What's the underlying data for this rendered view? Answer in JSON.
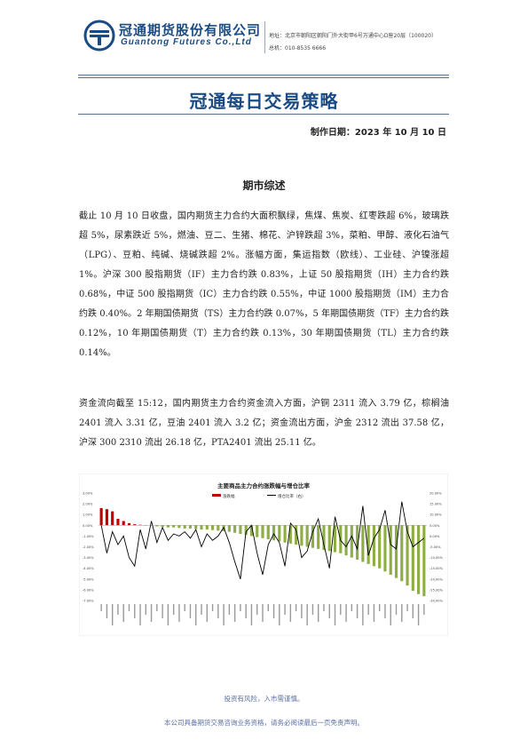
{
  "header": {
    "company_cn": "冠通期货股份有限公司",
    "company_en": "Guantong Futures Co.,Ltd",
    "address": "地址：北京市朝阳区朝阳门外大街甲6号万通中心D座20层（100020）",
    "phone": "总机：010-8535 6666",
    "logo_icon": "guantong-logo-icon",
    "brand_color": "#1b4b84"
  },
  "report": {
    "title": "冠通每日交易策略",
    "date": "制作日期：2023 年 10 月 10 日",
    "section_title": "期市综述",
    "paragraph1": "截止 10 月 10 日收盘，国内期货主力合约大面积飘绿，焦煤、焦炭、红枣跌超 6%，玻璃跌超 5%，尿素跌近 5%，燃油、豆二、生猪、棉花、沪锌跌超 3%，菜粕、甲醇、液化石油气（LPG）、豆粕、纯碱、烧碱跌超 2%。涨幅方面，集运指数（欧线）、工业硅、沪镍涨超 1%。沪深 300 股指期货（IF）主力合约跌 0.83%，上证 50 股指期货（IH）主力合约跌 0.68%，中证 500 股指期货（IC）主力合约跌 0.55%，中证 1000 股指期货（IM）主力合约跌 0.40%。2 年期国债期货（TS）主力合约跌 0.07%，5 年期国债期货（TF）主力合约跌 0.12%，10 年期国债期货（T）主力合约跌 0.13%，30 年期国债期货（TL）主力合约跌 0.14%。",
    "paragraph2": "资金流向截至 15:12，国内期货主力合约资金流入方面，沪铜 2311 流入 3.79 亿，棕榈油 2401 流入 3.31 亿，豆油 2401 流入 3.2 亿；资金流出方面，沪金 2312 流出 37.58 亿，沪深 300 2310 流出 26.18 亿，PTA2401 流出 25.11 亿。"
  },
  "chart_data": {
    "type": "bar",
    "title": "主要商品主力合约涨跌幅与增仓比率",
    "legend": [
      "涨跌幅",
      "增仓比率（右）"
    ],
    "legend_position": "top",
    "left_axis_ticks": [
      "3.00%",
      "2.00%",
      "1.00%",
      "0.00%",
      "-1.00%",
      "-2.00%",
      "-3.00%",
      "-4.00%",
      "-5.00%",
      "-6.00%",
      "-7.00%"
    ],
    "right_axis_ticks": [
      "20.00%",
      "15.00%",
      "10.00%",
      "5.00%",
      "0.00%",
      "-5.00%",
      "-10.00%",
      "-15.00%",
      "-20.00%",
      "-25.00%",
      "-30.00%"
    ],
    "ylim_left": [
      -7,
      3
    ],
    "ylim_right": [
      -30,
      20
    ],
    "bar_colors": {
      "positive": "#c00000",
      "negative": "#8fad45"
    },
    "line_color": "#000000",
    "series": [
      {
        "name": "涨跌幅",
        "values": [
          1.6,
          1.5,
          1.3,
          0.6,
          0.4,
          0.2,
          0.1,
          0.05,
          0.0,
          -0.05,
          -0.1,
          -0.15,
          -0.2,
          -0.2,
          -0.25,
          -0.3,
          -0.3,
          -0.35,
          -0.4,
          -0.4,
          -0.45,
          -0.5,
          -0.55,
          -0.6,
          -0.7,
          -0.8,
          -0.9,
          -1.0,
          -1.1,
          -1.2,
          -1.3,
          -1.4,
          -1.5,
          -1.6,
          -1.7,
          -1.8,
          -1.9,
          -2.0,
          -2.1,
          -2.2,
          -2.3,
          -2.4,
          -2.5,
          -2.6,
          -2.8,
          -3.0,
          -3.2,
          -3.4,
          -3.6,
          -3.8,
          -4.0,
          -4.3,
          -4.6,
          -4.9,
          -5.2,
          -5.6,
          -6.1,
          -6.4,
          -6.6
        ]
      },
      {
        "name": "增仓比率（右）",
        "values": [
          5,
          -8,
          2,
          -4,
          0,
          -10,
          -14,
          3,
          -6,
          7,
          -3,
          4,
          -2,
          1,
          0,
          2,
          -1,
          3,
          -5,
          1,
          -2,
          0,
          4,
          -3,
          -12,
          -20,
          2,
          5,
          -8,
          -18,
          -4,
          1,
          -3,
          -14,
          6,
          3,
          -10,
          -7,
          2,
          8,
          -4,
          -15,
          9,
          -2,
          -5,
          0,
          -6,
          14,
          -9,
          -1,
          3,
          12,
          -4,
          -6,
          16,
          2,
          -5,
          -3,
          -1
        ]
      }
    ]
  },
  "footer": {
    "line1": "投资有风险，入市需谨慎。",
    "line2": "本公司具备期货交易咨询业务资格，请务必阅读最后一页免责声明。"
  }
}
